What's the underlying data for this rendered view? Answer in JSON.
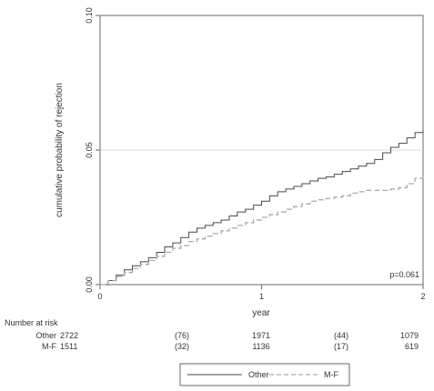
{
  "chart_data": {
    "type": "line",
    "title": "",
    "xlabel": "year",
    "ylabel": "cumulative probability of rejection",
    "xlim": [
      0,
      2
    ],
    "ylim": [
      0,
      0.1
    ],
    "xticks": [
      {
        "value": 0,
        "label": "0"
      },
      {
        "value": 1,
        "label": "1"
      },
      {
        "value": 2,
        "label": "2"
      }
    ],
    "yticks": [
      {
        "value": 0,
        "label": "0.00"
      },
      {
        "value": 0.05,
        "label": "0.05"
      },
      {
        "value": 0.1,
        "label": "0.10"
      }
    ],
    "reference_line": {
      "y": 0.05,
      "color": "#d9d9d9"
    },
    "annotation": "p=0.061",
    "series": [
      {
        "name": "Other",
        "color": "#4a4a4a",
        "dash": "solid",
        "x": [
          0,
          0.05,
          0.1,
          0.15,
          0.2,
          0.25,
          0.3,
          0.35,
          0.4,
          0.45,
          0.5,
          0.55,
          0.6,
          0.65,
          0.7,
          0.75,
          0.8,
          0.85,
          0.9,
          0.95,
          1.0,
          1.05,
          1.1,
          1.15,
          1.2,
          1.25,
          1.3,
          1.35,
          1.4,
          1.45,
          1.5,
          1.55,
          1.6,
          1.65,
          1.7,
          1.75,
          1.8,
          1.85,
          1.9,
          1.95,
          2.0
        ],
        "y": [
          0,
          0.0015,
          0.0035,
          0.0055,
          0.007,
          0.0085,
          0.01,
          0.012,
          0.014,
          0.0155,
          0.0175,
          0.0195,
          0.021,
          0.022,
          0.023,
          0.024,
          0.0255,
          0.027,
          0.028,
          0.0295,
          0.031,
          0.033,
          0.0345,
          0.0355,
          0.0365,
          0.0375,
          0.0385,
          0.0395,
          0.04,
          0.041,
          0.042,
          0.043,
          0.044,
          0.045,
          0.0465,
          0.049,
          0.051,
          0.0525,
          0.0545,
          0.0565,
          0.0575
        ]
      },
      {
        "name": "M-F",
        "color": "#aaaaaa",
        "dash": "dashed",
        "x": [
          0,
          0.05,
          0.1,
          0.15,
          0.2,
          0.25,
          0.3,
          0.35,
          0.4,
          0.45,
          0.5,
          0.55,
          0.6,
          0.65,
          0.7,
          0.75,
          0.8,
          0.85,
          0.9,
          0.95,
          1.0,
          1.05,
          1.1,
          1.15,
          1.2,
          1.25,
          1.3,
          1.35,
          1.4,
          1.45,
          1.5,
          1.55,
          1.6,
          1.65,
          1.7,
          1.75,
          1.8,
          1.85,
          1.9,
          1.95,
          2.0
        ],
        "y": [
          0,
          0.0015,
          0.003,
          0.0045,
          0.006,
          0.0075,
          0.009,
          0.0105,
          0.012,
          0.0135,
          0.0145,
          0.016,
          0.017,
          0.018,
          0.019,
          0.02,
          0.021,
          0.022,
          0.023,
          0.024,
          0.025,
          0.026,
          0.027,
          0.028,
          0.029,
          0.03,
          0.031,
          0.0315,
          0.032,
          0.0325,
          0.033,
          0.034,
          0.0345,
          0.035,
          0.035,
          0.035,
          0.0355,
          0.036,
          0.0375,
          0.0395,
          0.041
        ]
      }
    ],
    "number_at_risk": {
      "heading": "Number at risk",
      "rows": [
        {
          "label": "Other",
          "counts": [
            "2722",
            "(76)",
            "1971",
            "(44)",
            "1079"
          ]
        },
        {
          "label": "M-F",
          "counts": [
            "1511",
            "(32)",
            "1136",
            "(17)",
            "619"
          ]
        }
      ]
    },
    "legend": {
      "placement": "bottom",
      "entries": [
        {
          "name": "Other",
          "dash": "solid",
          "color": "#4a4a4a"
        },
        {
          "name": "M-F",
          "dash": "dashed",
          "color": "#aaaaaa"
        }
      ]
    }
  }
}
